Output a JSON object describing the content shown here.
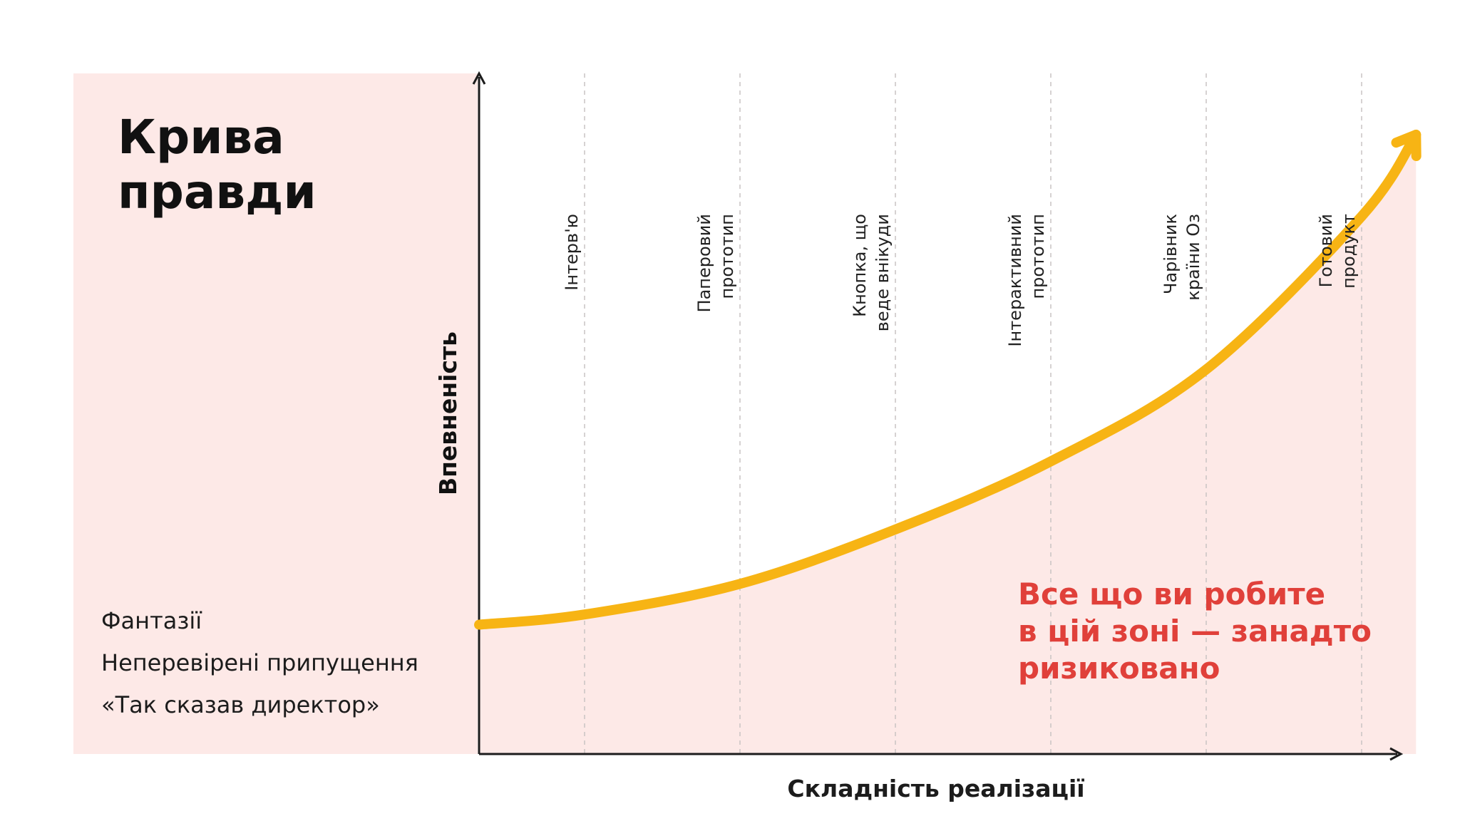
{
  "colors": {
    "zone": "#fde9e7",
    "curve": "#f7b414",
    "risk_text": "#e0403a",
    "axis": "#1c1c1c",
    "guide": "#c9c4c4"
  },
  "title_lines": [
    "Крива",
    "правди"
  ],
  "left_notes": [
    "Фантазії",
    "Неперевірені припущення",
    "«Так сказав директор»"
  ],
  "risk_lines": [
    "Все що ви робите",
    "в цій зоні — занадто",
    "ризиковано"
  ],
  "chart_data": {
    "type": "line",
    "title": "Крива правди",
    "xlabel": "Складність реалізації",
    "ylabel": "Впевненість",
    "stages": [
      {
        "lines": [
          "Інтерв'ю"
        ]
      },
      {
        "lines": [
          "Паперовий",
          "прототип"
        ]
      },
      {
        "lines": [
          "Кнопка, що",
          "веде внікуди"
        ]
      },
      {
        "lines": [
          "Інтерактивний",
          "прототип"
        ]
      },
      {
        "lines": [
          "Чарівник",
          "країни Оз"
        ]
      },
      {
        "lines": [
          "Готовий",
          "продукт"
        ]
      }
    ],
    "xlim": [
      0,
      6
    ],
    "ylim": [
      0,
      1
    ],
    "curve": {
      "x": [
        0,
        0.65,
        1.65,
        2.65,
        3.65,
        4.65,
        5.65,
        6.0
      ],
      "y": [
        0.19,
        0.205,
        0.25,
        0.33,
        0.43,
        0.565,
        0.79,
        0.91
      ]
    },
    "legend": "none",
    "grid": "vertical dashed lines at stages"
  }
}
